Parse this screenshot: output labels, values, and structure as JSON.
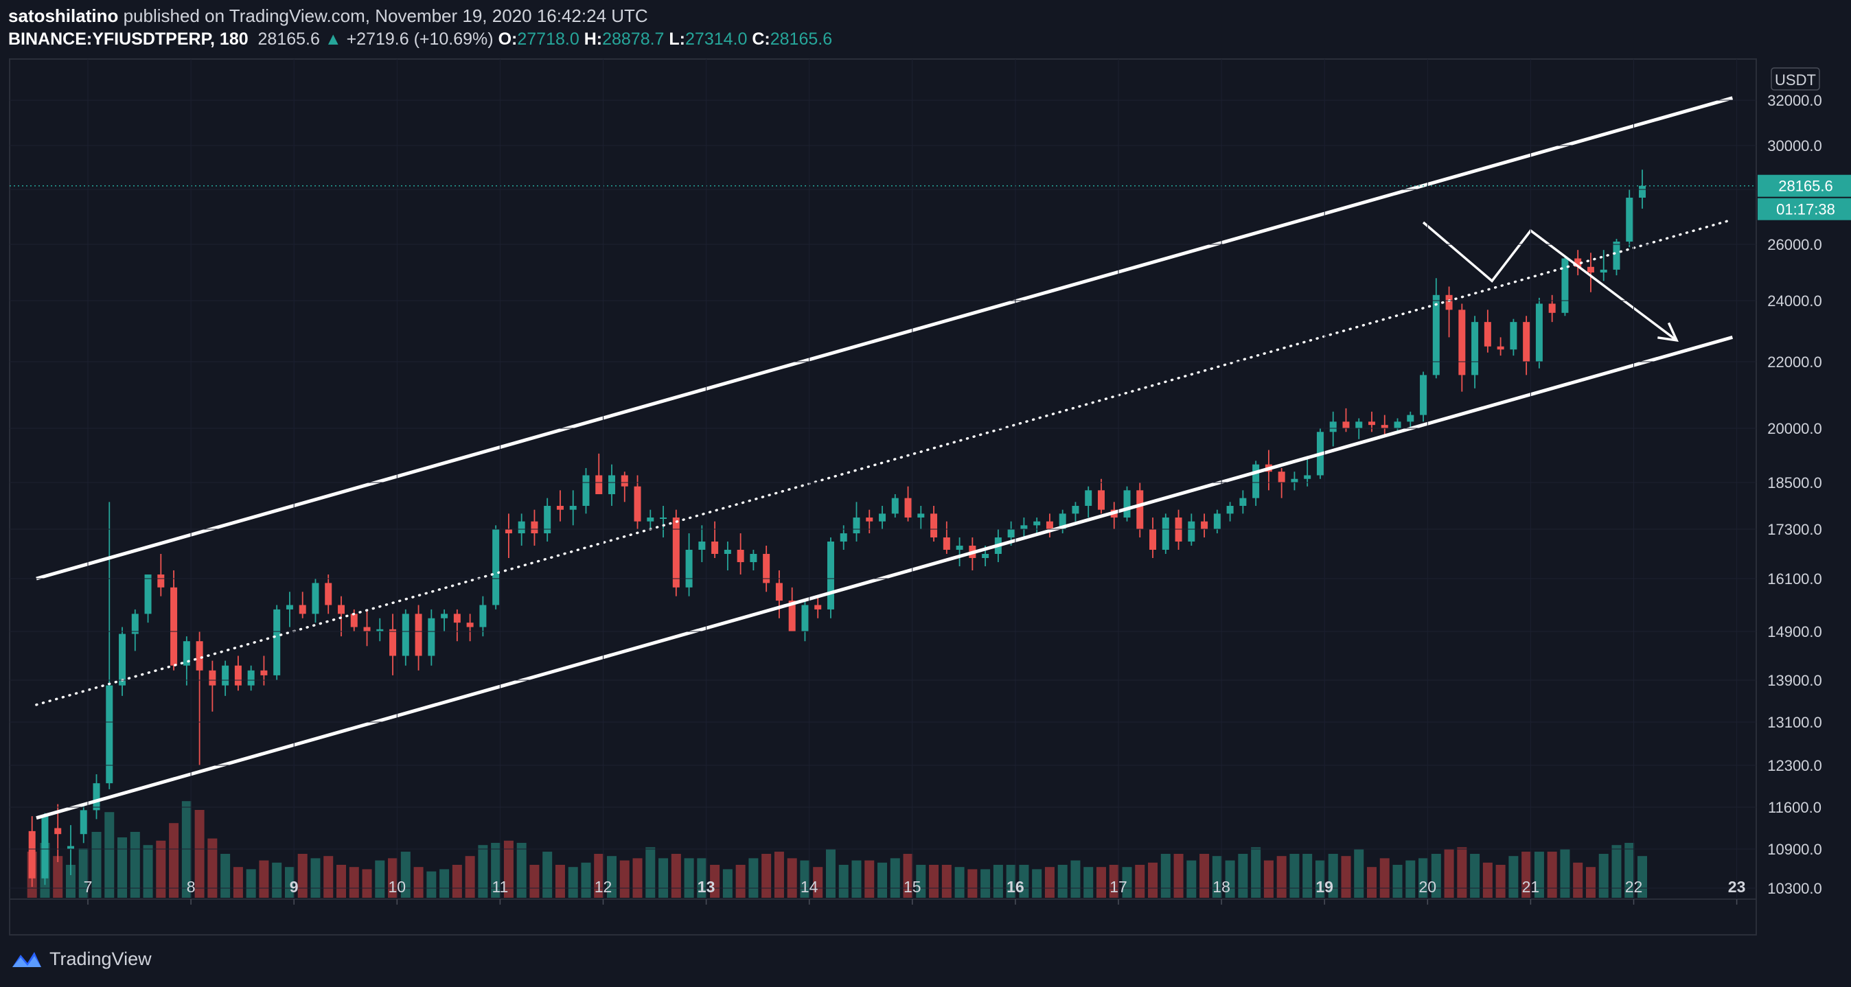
{
  "header": {
    "author": "satoshilatino",
    "published_text": "published on TradingView.com, November 19, 2020 16:42:24 UTC",
    "symbol": "BINANCE:YFIUSDTPERP, 180",
    "last": "28165.6",
    "arrow": "▲",
    "change": "+2719.6 (+10.69%)",
    "o_label": "O:",
    "o_value": "27718.0",
    "h_label": "H:",
    "h_value": "28878.7",
    "l_label": "L:",
    "l_value": "27314.0",
    "c_label": "C:",
    "c_value": "28165.6"
  },
  "footer": {
    "brand": "TradingView",
    "logo_icon": "tradingview-logo-icon"
  },
  "colors": {
    "background": "#131722",
    "up": "#26a69a",
    "down": "#ef5350",
    "vol_up": "#1e5c58",
    "vol_down": "#7b2e33",
    "text": "#d1d4dc"
  },
  "chart_data": {
    "type": "candlestick",
    "currency_label": "USDT",
    "price_ticks": [
      "32000.0",
      "30000.0",
      "28000.0",
      "26000.0",
      "24000.0",
      "22000.0",
      "20000.0",
      "18500.0",
      "17300.0",
      "16100.0",
      "14900.0",
      "13900.0",
      "13100.0",
      "12300.0",
      "11600.0",
      "10900.0",
      "10300.0"
    ],
    "date_ticks": [
      "7",
      "8",
      "9",
      "10",
      "11",
      "12",
      "13",
      "14",
      "15",
      "16",
      "17",
      "18",
      "19",
      "20",
      "21",
      "22",
      "23"
    ],
    "bold_ticks": [
      "9",
      "13",
      "16",
      "19",
      "23"
    ],
    "last_price_label": "28165.6",
    "countdown_label": "01:17:38",
    "candle_interval_hours": 3,
    "first_candle_time": "2020-11-06T11:00",
    "candles": [
      [
        11200,
        11450,
        10320,
        10450
      ],
      [
        10450,
        11500,
        10350,
        11450
      ],
      [
        11250,
        11650,
        10700,
        11150
      ],
      [
        10900,
        11300,
        10500,
        10950
      ],
      [
        11150,
        11650,
        11000,
        11550
      ],
      [
        11550,
        12150,
        11400,
        12000
      ],
      [
        12000,
        18000,
        11900,
        13800
      ],
      [
        13800,
        15000,
        13600,
        14850
      ],
      [
        14850,
        15400,
        14500,
        15300
      ],
      [
        15300,
        16200,
        15100,
        16200
      ],
      [
        16200,
        16700,
        15700,
        15900
      ],
      [
        15900,
        16300,
        14100,
        14200
      ],
      [
        14200,
        14800,
        13800,
        14700
      ],
      [
        14700,
        14900,
        12300,
        14100
      ],
      [
        14100,
        14300,
        13300,
        13800
      ],
      [
        13800,
        14300,
        13600,
        14200
      ],
      [
        14200,
        14400,
        13700,
        13800
      ],
      [
        13800,
        14200,
        13700,
        14100
      ],
      [
        14100,
        14400,
        13800,
        14000
      ],
      [
        14000,
        15500,
        13900,
        15400
      ],
      [
        15400,
        15800,
        15000,
        15500
      ],
      [
        15500,
        15800,
        15200,
        15300
      ],
      [
        15300,
        16100,
        15100,
        16000
      ],
      [
        16000,
        16200,
        15300,
        15500
      ],
      [
        15500,
        15700,
        14800,
        15300
      ],
      [
        15300,
        15400,
        14900,
        15000
      ],
      [
        15000,
        15400,
        14600,
        14900
      ],
      [
        14900,
        15200,
        14700,
        14950
      ],
      [
        14950,
        15300,
        14000,
        14400
      ],
      [
        14400,
        15400,
        14200,
        15300
      ],
      [
        15300,
        15500,
        14100,
        14400
      ],
      [
        14400,
        15400,
        14200,
        15200
      ],
      [
        15200,
        15400,
        14900,
        15300
      ],
      [
        15300,
        15400,
        14700,
        15100
      ],
      [
        15100,
        15300,
        14700,
        15000
      ],
      [
        15000,
        15700,
        14800,
        15500
      ],
      [
        15500,
        17400,
        15400,
        17300
      ],
      [
        17300,
        17700,
        16600,
        17200
      ],
      [
        17200,
        17700,
        16900,
        17500
      ],
      [
        17500,
        17800,
        16900,
        17200
      ],
      [
        17200,
        18100,
        17000,
        17900
      ],
      [
        17900,
        18300,
        17500,
        17800
      ],
      [
        17800,
        18300,
        17400,
        17900
      ],
      [
        17900,
        18900,
        17700,
        18700
      ],
      [
        18700,
        19300,
        18300,
        18200
      ],
      [
        18200,
        19000,
        17900,
        18700
      ],
      [
        18700,
        18800,
        18000,
        18400
      ],
      [
        18400,
        18700,
        17300,
        17500
      ],
      [
        17500,
        17800,
        17300,
        17600
      ],
      [
        17600,
        17900,
        17100,
        17600
      ],
      [
        17600,
        17800,
        15700,
        15900
      ],
      [
        15900,
        17200,
        15700,
        16800
      ],
      [
        16800,
        17400,
        16500,
        17000
      ],
      [
        17000,
        17500,
        16600,
        16700
      ],
      [
        16700,
        17000,
        16300,
        16800
      ],
      [
        16800,
        17200,
        16200,
        16500
      ],
      [
        16500,
        16800,
        16300,
        16700
      ],
      [
        16700,
        16900,
        15800,
        16000
      ],
      [
        16000,
        16300,
        15200,
        15600
      ],
      [
        15600,
        15900,
        14900,
        14900
      ],
      [
        14900,
        15600,
        14700,
        15500
      ],
      [
        15500,
        15700,
        15200,
        15400
      ],
      [
        15400,
        17100,
        15200,
        17000
      ],
      [
        17000,
        17400,
        16800,
        17200
      ],
      [
        17200,
        18000,
        17000,
        17600
      ],
      [
        17600,
        17800,
        17200,
        17500
      ],
      [
        17500,
        17900,
        17300,
        17700
      ],
      [
        17700,
        18200,
        17600,
        18100
      ],
      [
        18100,
        18400,
        17500,
        17600
      ],
      [
        17600,
        17900,
        17300,
        17700
      ],
      [
        17700,
        17900,
        17000,
        17100
      ],
      [
        17100,
        17500,
        16700,
        16800
      ],
      [
        16800,
        17100,
        16400,
        16900
      ],
      [
        16900,
        17100,
        16300,
        16600
      ],
      [
        16600,
        16900,
        16400,
        16700
      ],
      [
        16700,
        17300,
        16500,
        17100
      ],
      [
        17100,
        17500,
        16900,
        17300
      ],
      [
        17300,
        17600,
        17100,
        17400
      ],
      [
        17400,
        17600,
        17200,
        17500
      ],
      [
        17500,
        17700,
        17100,
        17300
      ],
      [
        17300,
        17800,
        17200,
        17700
      ],
      [
        17700,
        18000,
        17500,
        17900
      ],
      [
        17900,
        18400,
        17600,
        18300
      ],
      [
        18300,
        18600,
        17700,
        17800
      ],
      [
        17800,
        18000,
        17300,
        17600
      ],
      [
        17600,
        18400,
        17500,
        18300
      ],
      [
        18300,
        18500,
        17100,
        17300
      ],
      [
        17300,
        17600,
        16600,
        16800
      ],
      [
        16800,
        17700,
        16700,
        17600
      ],
      [
        17600,
        17800,
        16800,
        17000
      ],
      [
        17000,
        17700,
        16900,
        17500
      ],
      [
        17500,
        17700,
        17100,
        17300
      ],
      [
        17300,
        17800,
        17200,
        17700
      ],
      [
        17700,
        18000,
        17500,
        17900
      ],
      [
        17900,
        18300,
        17700,
        18100
      ],
      [
        18100,
        19100,
        17900,
        19000
      ],
      [
        19000,
        19400,
        18300,
        18800
      ],
      [
        18800,
        18900,
        18100,
        18500
      ],
      [
        18500,
        18800,
        18300,
        18600
      ],
      [
        18600,
        19200,
        18400,
        18700
      ],
      [
        18700,
        20000,
        18600,
        19900
      ],
      [
        19900,
        20500,
        19500,
        20200
      ],
      [
        20200,
        20600,
        19900,
        20000
      ],
      [
        20000,
        20300,
        19700,
        20200
      ],
      [
        20200,
        20500,
        19900,
        20100
      ],
      [
        20100,
        20400,
        19800,
        20000
      ],
      [
        20000,
        20300,
        19900,
        20200
      ],
      [
        20200,
        20500,
        20000,
        20400
      ],
      [
        20400,
        21700,
        20200,
        21600
      ],
      [
        21600,
        24800,
        21500,
        24200
      ],
      [
        24200,
        24500,
        22800,
        23700
      ],
      [
        23700,
        23900,
        21100,
        21600
      ],
      [
        21600,
        23500,
        21200,
        23300
      ],
      [
        23300,
        23700,
        22300,
        22500
      ],
      [
        22500,
        22800,
        22200,
        22400
      ],
      [
        22400,
        23400,
        22200,
        23300
      ],
      [
        23300,
        23500,
        21600,
        22000
      ],
      [
        22000,
        24100,
        21800,
        23900
      ],
      [
        23900,
        24200,
        23300,
        23600
      ],
      [
        23600,
        25600,
        23500,
        25500
      ],
      [
        25500,
        25800,
        24900,
        25200
      ],
      [
        25200,
        25700,
        24300,
        25000
      ],
      [
        25000,
        25800,
        24700,
        25100
      ],
      [
        25100,
        26200,
        24900,
        26100
      ],
      [
        26100,
        28000,
        25900,
        27700
      ],
      [
        27700,
        28900,
        27300,
        28165.6
      ]
    ],
    "volumes": [
      42,
      50,
      38,
      30,
      45,
      60,
      78,
      55,
      60,
      48,
      52,
      68,
      88,
      80,
      54,
      40,
      28,
      26,
      34,
      32,
      28,
      40,
      36,
      38,
      30,
      28,
      26,
      34,
      36,
      42,
      28,
      24,
      26,
      30,
      38,
      48,
      50,
      52,
      50,
      30,
      42,
      30,
      28,
      32,
      40,
      38,
      34,
      36,
      46,
      36,
      40,
      36,
      36,
      30,
      26,
      30,
      36,
      40,
      42,
      36,
      34,
      28,
      44,
      30,
      34,
      34,
      32,
      36,
      40,
      30,
      30,
      30,
      28,
      26,
      26,
      30,
      30,
      30,
      26,
      28,
      30,
      34,
      28,
      28,
      30,
      28,
      30,
      32,
      40,
      40,
      34,
      40,
      38,
      34,
      40,
      46,
      34,
      38,
      40,
      40,
      34,
      40,
      38,
      44,
      28,
      36,
      30,
      34,
      36,
      40,
      44,
      46,
      40,
      32,
      30,
      38,
      42,
      42,
      42,
      44,
      32,
      28,
      40,
      48,
      50,
      38
    ],
    "channel": {
      "upper": [
        [
          "2020-11-06T12:00",
          16100
        ],
        [
          "2020-11-22T23:00",
          32100
        ]
      ],
      "middle": [
        [
          "2020-11-06T12:00",
          13430
        ],
        [
          "2020-11-22T23:00",
          26900
        ]
      ],
      "lower": [
        [
          "2020-11-06T12:00",
          11420
        ],
        [
          "2020-11-22T23:00",
          22800
        ]
      ]
    },
    "projection_path": [
      [
        "2020-11-19T23:00",
        26800
      ],
      [
        "2020-11-20T15:00",
        24700
      ],
      [
        "2020-11-21T00:00",
        26500
      ],
      [
        "2020-11-22T10:00",
        22700
      ]
    ]
  }
}
